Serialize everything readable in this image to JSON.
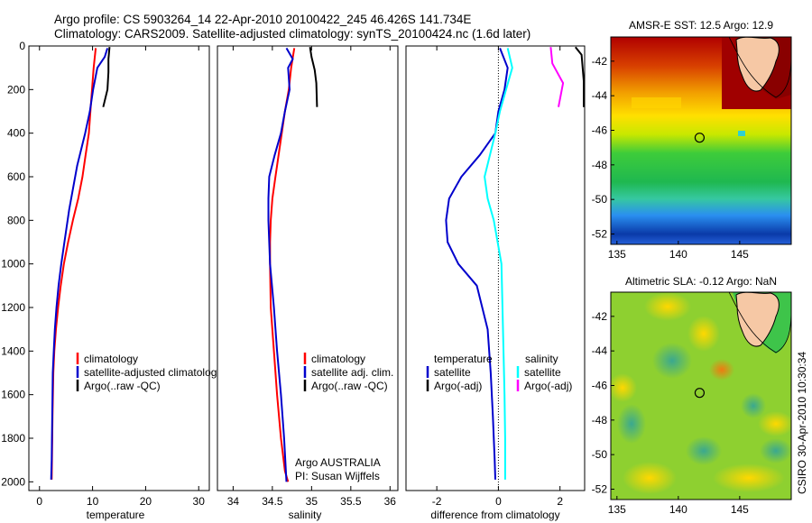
{
  "header": {
    "line1": "Argo profile: CS 5903264_14 22-Apr-2010 20100422_245 46.426S 141.734E",
    "line2": "Climatology: CARS2009. Satellite-adjusted climatology: synTS_20100424.nc (1.6d later)"
  },
  "credit": "CSIRO 30-Apr-2010 10:30:34",
  "colors": {
    "climatology": "#ff0000",
    "satellite": "#0000cc",
    "argo": "#000000",
    "sal_satellite": "#00ffff",
    "sal_argo": "#ff00ff",
    "land": "#f6c8a5"
  },
  "chart_data": [
    {
      "type": "line",
      "xlabel": "temperature",
      "ylabel": "",
      "xlim": [
        -2,
        32
      ],
      "ylim": [
        2040,
        0
      ],
      "xticks": [
        "0",
        "10",
        "20",
        "30"
      ],
      "yticks": [
        "0",
        "200",
        "400",
        "600",
        "800",
        "1000",
        "1200",
        "1400",
        "1600",
        "1800",
        "2000"
      ],
      "legend": [
        "climatology",
        "satellite-adjusted climatology",
        "Argo(..raw -QC)"
      ],
      "series": [
        {
          "name": "climatology",
          "color": "#ff0000",
          "x": [
            10.6,
            10.2,
            9.9,
            9.6,
            9.3,
            8.7,
            8.1,
            7.3,
            6.3,
            5.4,
            4.6,
            4.0,
            3.5,
            3.1,
            2.8,
            2.6,
            2.45,
            2.35,
            2.3
          ],
          "y": [
            10,
            100,
            200,
            300,
            400,
            500,
            600,
            700,
            800,
            900,
            1000,
            1100,
            1200,
            1300,
            1400,
            1500,
            1700,
            1900,
            1990
          ]
        },
        {
          "name": "satellite-adjusted climatology",
          "color": "#0000cc",
          "x": [
            12.8,
            12.3,
            10.9,
            10.1,
            9.5,
            8.6,
            7.1,
            5.6,
            4.7,
            4.1,
            3.6,
            3.2,
            2.9,
            2.7,
            2.5,
            2.4,
            2.3,
            2.2
          ],
          "y": [
            10,
            50,
            100,
            200,
            300,
            400,
            550,
            750,
            900,
            1000,
            1100,
            1200,
            1300,
            1400,
            1500,
            1700,
            1900,
            1990
          ]
        },
        {
          "name": "Argo(..raw -QC)",
          "color": "#000000",
          "x": [
            13.2,
            13.0,
            13.0,
            12.8,
            12.0
          ],
          "y": [
            5,
            60,
            120,
            200,
            280
          ]
        }
      ]
    },
    {
      "type": "line",
      "xlabel": "salinity",
      "ylabel": "",
      "xlim": [
        33.8,
        36.1
      ],
      "ylim": [
        2040,
        0
      ],
      "xticks": [
        "34",
        "34.5",
        "35",
        "35.5",
        "36"
      ],
      "legend": [
        "climatology",
        "satellite adj. clim.",
        "Argo(..raw -QC)"
      ],
      "annotation": [
        "Argo AUSTRALIA",
        "PI: Susan Wijffels"
      ],
      "series": [
        {
          "name": "climatology",
          "color": "#ff0000",
          "x": [
            34.78,
            34.74,
            34.71,
            34.66,
            34.62,
            34.58,
            34.54,
            34.5,
            34.48,
            34.47,
            34.47,
            34.48,
            34.52,
            34.56,
            34.61,
            34.66,
            34.7
          ],
          "y": [
            10,
            100,
            200,
            300,
            400,
            500,
            600,
            700,
            800,
            900,
            1000,
            1200,
            1400,
            1600,
            1800,
            1950,
            2000
          ]
        },
        {
          "name": "satellite adj. clim.",
          "color": "#0000cc",
          "x": [
            34.68,
            34.76,
            34.7,
            34.72,
            34.66,
            34.61,
            34.53,
            34.46,
            34.45,
            34.45,
            34.46,
            34.47,
            34.52,
            34.56,
            34.61,
            34.65,
            34.68
          ],
          "y": [
            10,
            60,
            100,
            200,
            300,
            400,
            500,
            600,
            700,
            800,
            900,
            1000,
            1200,
            1400,
            1600,
            1800,
            2000
          ]
        },
        {
          "name": "Argo(..raw -QC)",
          "color": "#000000",
          "x": [
            34.98,
            35.0,
            35.04,
            35.06,
            35.07
          ],
          "y": [
            5,
            50,
            110,
            170,
            280
          ]
        }
      ]
    },
    {
      "type": "line",
      "xlabel": "difference from climatology",
      "ylabel": "",
      "xlim": [
        -3,
        2.8
      ],
      "ylim": [
        2040,
        0
      ],
      "xticks": [
        "-2",
        "0",
        "2"
      ],
      "legend_groups": [
        {
          "title": "temperature",
          "entries": [
            "satellite",
            "Argo(-adj)"
          ]
        },
        {
          "title": "salinity",
          "entries": [
            "satellite",
            "Argo(-adj)"
          ]
        }
      ],
      "series": [
        {
          "name": "temperature satellite",
          "color": "#0000cc",
          "x": [
            0.05,
            0.3,
            0.2,
            0.0,
            -0.1,
            -0.6,
            -1.2,
            -1.6,
            -1.7,
            -1.65,
            -1.3,
            -0.7,
            -0.35,
            -0.25,
            -0.18,
            -0.12,
            -0.1
          ],
          "y": [
            10,
            100,
            200,
            300,
            400,
            500,
            600,
            700,
            800,
            900,
            1000,
            1100,
            1300,
            1500,
            1700,
            1900,
            1990
          ]
        },
        {
          "name": "temperature Argo(-adj)",
          "color": "#000000",
          "x": [
            2.5,
            2.7,
            2.9,
            3.0
          ],
          "y": [
            5,
            40,
            160,
            280
          ]
        },
        {
          "name": "salinity satellite",
          "color": "#00ffff",
          "x": [
            0.3,
            0.45,
            0.25,
            0.05,
            -0.1,
            -0.45,
            -0.35,
            -0.15,
            0.1,
            0.15,
            0.2,
            0.22,
            0.22
          ],
          "y": [
            10,
            100,
            200,
            300,
            400,
            600,
            700,
            800,
            1000,
            1300,
            1600,
            1800,
            1990
          ]
        },
        {
          "name": "salinity Argo(-adj)",
          "color": "#ff00ff",
          "x": [
            1.7,
            1.75,
            2.1,
            1.95
          ],
          "y": [
            5,
            80,
            170,
            280
          ]
        }
      ]
    },
    {
      "type": "heatmap",
      "title": "AMSR-E SST: 12.5 Argo: 12.9",
      "xlim": [
        134.5,
        149.2
      ],
      "ylim": [
        -52.6,
        -40.6
      ],
      "xticks": [
        "135",
        "140",
        "145"
      ],
      "yticks": [
        "-42",
        "-44",
        "-46",
        "-48",
        "-50",
        "-52"
      ],
      "float_position": {
        "lon": 141.734,
        "lat": -46.426
      }
    },
    {
      "type": "heatmap",
      "title": "Altimetric SLA: -0.12 Argo: NaN",
      "xlim": [
        134.5,
        149.2
      ],
      "ylim": [
        -52.6,
        -40.6
      ],
      "xticks": [
        "135",
        "140",
        "145"
      ],
      "yticks": [
        "-42",
        "-44",
        "-46",
        "-48",
        "-50",
        "-52"
      ],
      "float_position": {
        "lon": 141.734,
        "lat": -46.426
      }
    }
  ]
}
